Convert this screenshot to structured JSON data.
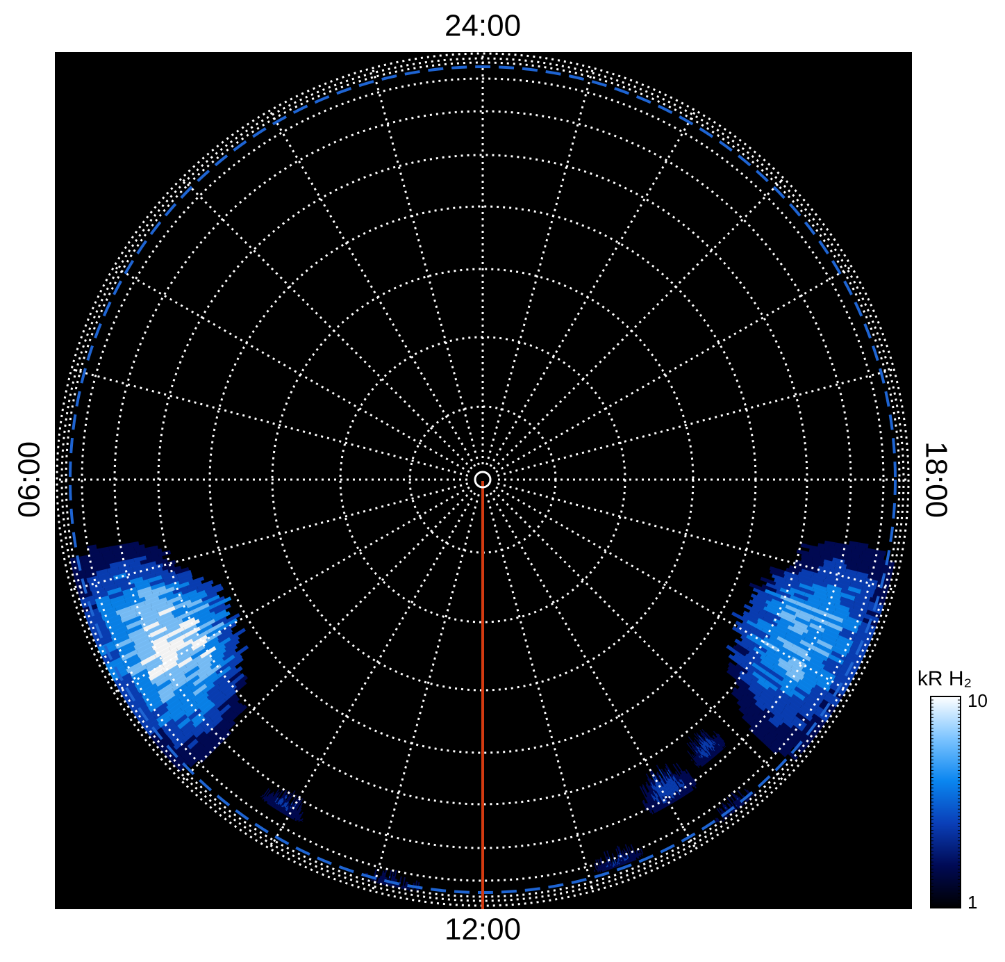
{
  "chart_data": {
    "type": "polar-map",
    "local_time_ticks": [
      {
        "value": 0,
        "label": "24:00"
      },
      {
        "value": 6,
        "label": "06:00"
      },
      {
        "value": 12,
        "label": "12:00"
      },
      {
        "value": 18,
        "label": "18:00"
      }
    ],
    "colorbar": {
      "label": "kR H₂",
      "zlim": [
        1,
        10
      ],
      "zticks": [
        1,
        10
      ],
      "log": true,
      "colormap": [
        "#000000",
        "#000a55",
        "#0a3fb8",
        "#0a86f0",
        "#7cc4ff",
        "#ffffff"
      ]
    }
  }
}
